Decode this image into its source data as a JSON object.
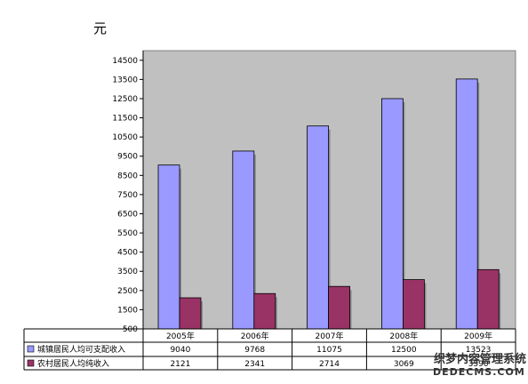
{
  "chart_data": {
    "type": "bar",
    "ylabel": "元",
    "ylim": [
      500,
      15000
    ],
    "yticks": [
      500,
      1500,
      2500,
      3500,
      4500,
      5500,
      6500,
      7500,
      8500,
      9500,
      10500,
      11500,
      12500,
      13500,
      14500
    ],
    "categories": [
      "2005年",
      "2006年",
      "2007年",
      "2008年",
      "2009年"
    ],
    "series": [
      {
        "name": "城镇居民人均可支配收入",
        "values": [
          9040,
          9768,
          11075,
          12500,
          13523
        ],
        "display": [
          "9040",
          "9768",
          "11075",
          "12500",
          "13523"
        ],
        "color": "#9999ff"
      },
      {
        "name": "农村居民人均纯收入",
        "values": [
          2121,
          2341,
          2714,
          3069,
          3590
        ],
        "display": [
          "2121",
          "2341",
          "2714",
          "3069",
          "3590"
        ],
        "color": "#993366"
      }
    ],
    "plot_background": "#c0c0c0",
    "grid": false,
    "legend": "table-bottom"
  },
  "watermark": {
    "line1": "织梦内容管理系统",
    "line2": "DEDECMS.COM"
  }
}
